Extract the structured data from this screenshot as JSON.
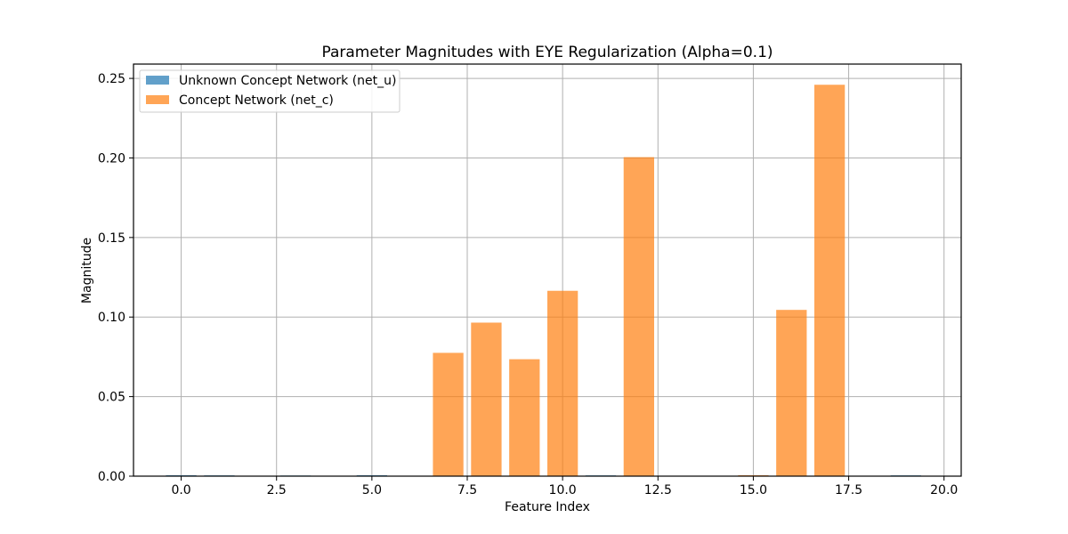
{
  "chart_data": {
    "type": "bar",
    "title": "Parameter Magnitudes with EYE Regularization (Alpha=0.1)",
    "xlabel": "Feature Index",
    "ylabel": "Magnitude",
    "xlim": [
      -1.25,
      20.45
    ],
    "ylim": [
      0,
      0.259
    ],
    "grid": true,
    "legend_position": "top-left",
    "x": [
      0,
      1,
      2,
      3,
      4,
      5,
      6,
      7,
      8,
      9,
      10,
      11,
      12,
      13,
      14,
      15,
      16,
      17,
      18,
      19
    ],
    "xticks": [
      0,
      2.5,
      5,
      7.5,
      10,
      12.5,
      15,
      17.5,
      20
    ],
    "xtick_labels": [
      "0.0",
      "2.5",
      "5.0",
      "7.5",
      "10.0",
      "12.5",
      "15.0",
      "17.5",
      "20.0"
    ],
    "yticks": [
      0,
      0.05,
      0.1,
      0.15,
      0.2,
      0.25
    ],
    "ytick_labels": [
      "0.00",
      "0.05",
      "0.10",
      "0.15",
      "0.20",
      "0.25"
    ],
    "series": [
      {
        "name": "Unknown Concept Network (net_u)",
        "color": "#1f77b4",
        "opacity": 0.7,
        "values": [
          0.0006,
          0.0005,
          0,
          0.0004,
          0,
          0.0006,
          0,
          0,
          0,
          0,
          0,
          0.0005,
          0,
          0,
          0,
          0,
          0,
          0,
          0,
          0.0005
        ]
      },
      {
        "name": "Concept Network (net_c)",
        "color": "#ff7f0e",
        "opacity": 0.7,
        "values": [
          0,
          0,
          0,
          0,
          0,
          0,
          0,
          0.0775,
          0.0965,
          0.0735,
          0.1165,
          0,
          0.2005,
          0,
          0,
          0.0006,
          0.1045,
          0.246,
          0,
          0
        ]
      }
    ]
  }
}
